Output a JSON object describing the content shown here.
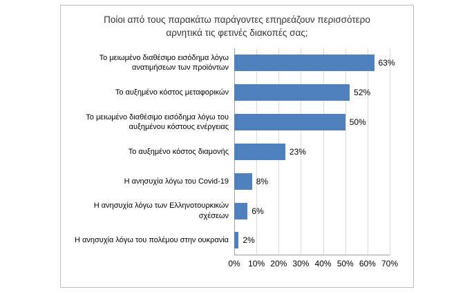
{
  "chart_data": {
    "type": "bar",
    "orientation": "horizontal",
    "title": "Ποίοι από τους παρακάτω παράγοντες επηρεάζουν περισσότερο αρνητικά τις φετινές διακοπές σας;",
    "categories": [
      "Το μειωμένο διαθέσιμο εισόδημα λόγω ανατιμήσεων των προϊόντων",
      "Το αυξημένο κόστος μεταφορικών",
      "Το μειωμένο διαθέσιμο εισόδημα λόγω του αυξημένου κόστους ενέργειας",
      "Το αυξημένο κόστος διαμονής",
      "Η ανησυχία λόγω του Covid-19",
      "Η ανησυχία λόγω των Ελληνοτουρκικών σχέσεων",
      "Η ανησυχία λόγω του πολέμου στην ουκρανία"
    ],
    "values": [
      63,
      52,
      50,
      23,
      8,
      6,
      2
    ],
    "value_labels": [
      "63%",
      "52%",
      "50%",
      "23%",
      "8%",
      "6%",
      "2%"
    ],
    "xlim": [
      0,
      70
    ],
    "x_ticks": [
      "0%",
      "10%",
      "20%",
      "30%",
      "40%",
      "50%",
      "60%",
      "70%"
    ],
    "bar_color": "#4F81BD",
    "gridline_color": "#d9d9d9",
    "grid": true,
    "legend": "none"
  }
}
